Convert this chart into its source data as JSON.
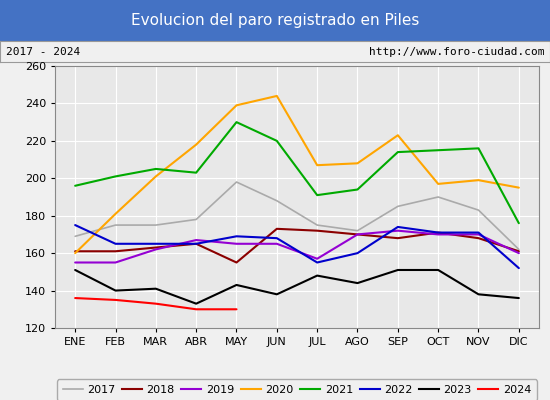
{
  "title": "Evolucion del paro registrado en Piles",
  "subtitle_left": "2017 - 2024",
  "subtitle_right": "http://www.foro-ciudad.com",
  "months": [
    "ENE",
    "FEB",
    "MAR",
    "ABR",
    "MAY",
    "JUN",
    "JUL",
    "AGO",
    "SEP",
    "OCT",
    "NOV",
    "DIC"
  ],
  "ylim": [
    120,
    260
  ],
  "yticks": [
    120,
    140,
    160,
    180,
    200,
    220,
    240,
    260
  ],
  "series": {
    "2017": {
      "color": "#aaaaaa",
      "values": [
        169,
        175,
        175,
        178,
        198,
        188,
        175,
        172,
        185,
        190,
        183,
        162
      ]
    },
    "2018": {
      "color": "#8b0000",
      "values": [
        161,
        161,
        163,
        165,
        155,
        173,
        172,
        170,
        168,
        171,
        168,
        161
      ]
    },
    "2019": {
      "color": "#9400d3",
      "values": [
        155,
        155,
        162,
        167,
        165,
        165,
        157,
        170,
        172,
        170,
        170,
        160
      ]
    },
    "2020": {
      "color": "#ffa500",
      "values": [
        160,
        181,
        201,
        218,
        239,
        244,
        207,
        208,
        223,
        197,
        199,
        195
      ]
    },
    "2021": {
      "color": "#00aa00",
      "values": [
        196,
        201,
        205,
        203,
        230,
        220,
        191,
        194,
        214,
        215,
        216,
        176
      ]
    },
    "2022": {
      "color": "#0000cc",
      "values": [
        175,
        165,
        165,
        165,
        169,
        168,
        155,
        160,
        174,
        171,
        171,
        152
      ]
    },
    "2023": {
      "color": "#000000",
      "values": [
        151,
        140,
        141,
        133,
        143,
        138,
        148,
        144,
        151,
        151,
        138,
        136
      ]
    },
    "2024": {
      "color": "#ff0000",
      "values": [
        136,
        135,
        133,
        130,
        130,
        null,
        null,
        null,
        null,
        null,
        null,
        null
      ]
    }
  },
  "title_bg_color": "#4472c4",
  "title_font_color": "#ffffff",
  "plot_bg_color": "#e8e8e8",
  "grid_color": "#ffffff",
  "fig_bg_color": "#f0f0f0",
  "legend_years": [
    "2017",
    "2018",
    "2019",
    "2020",
    "2021",
    "2022",
    "2023",
    "2024"
  ]
}
